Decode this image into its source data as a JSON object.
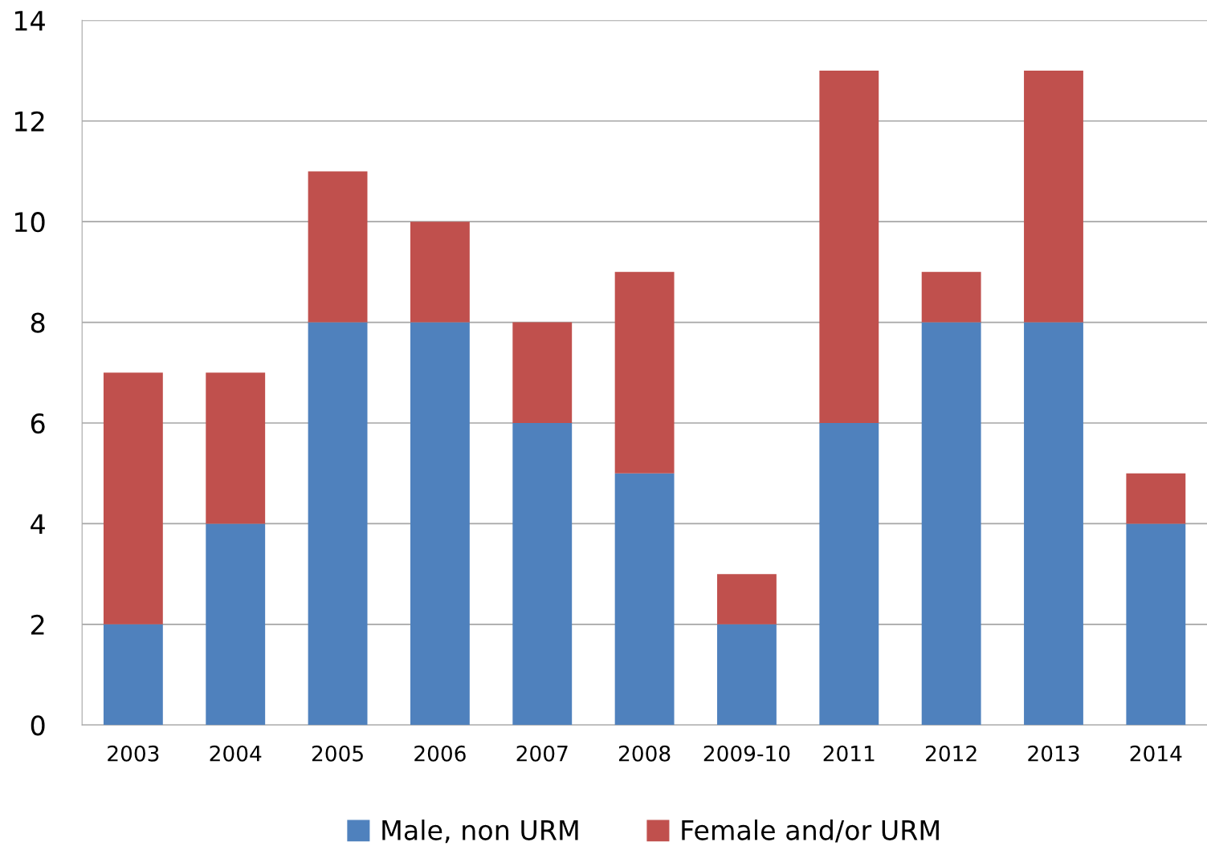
{
  "chart_data": {
    "type": "bar",
    "stacked": true,
    "categories": [
      "2003",
      "2004",
      "2005",
      "2006",
      "2007",
      "2008",
      "2009-10",
      "2011",
      "2012",
      "2013",
      "2014"
    ],
    "series": [
      {
        "name": "Male, non URM",
        "color": "#4f81bd",
        "values": [
          2,
          4,
          8,
          8,
          6,
          5,
          2,
          6,
          8,
          8,
          4
        ]
      },
      {
        "name": "Female and/or URM",
        "color": "#c0504d",
        "values": [
          5,
          3,
          3,
          2,
          2,
          4,
          1,
          7,
          1,
          5,
          1
        ]
      }
    ],
    "ylim": [
      0,
      14
    ],
    "yticks": [
      0,
      2,
      4,
      6,
      8,
      10,
      12,
      14
    ],
    "grid": "y",
    "legend": "bottom"
  }
}
